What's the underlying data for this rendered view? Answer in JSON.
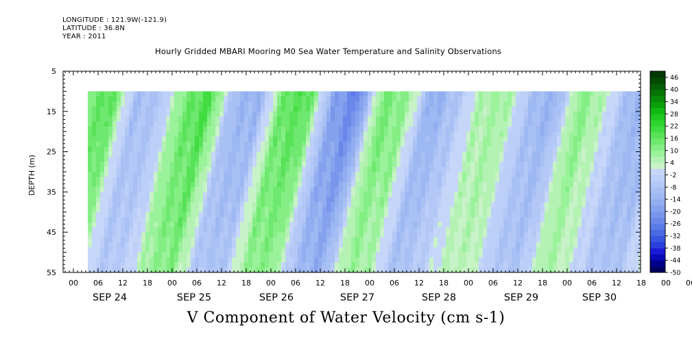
{
  "header": {
    "longitude": "LONGITUDE : 121.9W(-121.9)",
    "latitude": "LATITUDE : 36.8N",
    "year": "YEAR : 2011",
    "title": "Hourly Gridded MBARI Mooring M0 Sea Water Temperature and Salinity Observations"
  },
  "chart_data": {
    "type": "heatmap",
    "title": "V Component of Water Velocity (cm s-1)",
    "ylabel": "DEPTH (m)",
    "xlabel": "",
    "ylim": [
      5,
      55
    ],
    "y_inverted": true,
    "y_ticks": [
      5,
      15,
      25,
      35,
      45,
      55
    ],
    "x_hour_ticks": [
      "00",
      "06",
      "12",
      "18",
      "00",
      "06",
      "12",
      "18",
      "00",
      "06",
      "12",
      "18",
      "00",
      "06",
      "12",
      "18",
      "00",
      "06",
      "12",
      "18",
      "00",
      "06",
      "12",
      "18",
      "00",
      "06",
      "12",
      "18"
    ],
    "x_day_labels": [
      "SEP 24",
      "SEP 25",
      "SEP 26",
      "SEP 27",
      "SEP 28",
      "SEP 29",
      "SEP 30"
    ],
    "data_depth_range": [
      10,
      55
    ],
    "colorbar": {
      "labels": [
        "46",
        "40",
        "34",
        "28",
        "22",
        "16",
        "10",
        "4",
        "-2",
        "-8",
        "-14",
        "-20",
        "-26",
        "-32",
        "-38",
        "-44",
        "-50"
      ],
      "levels": [
        -50,
        -47,
        -44,
        -41,
        -38,
        -35,
        -32,
        -29,
        -26,
        -23,
        -20,
        -17,
        -14,
        -11,
        -8,
        -5,
        -2,
        1,
        4,
        7,
        10,
        13,
        16,
        19,
        22,
        25,
        28,
        31,
        34,
        37,
        40,
        43,
        46,
        49
      ],
      "colors": [
        "#000060",
        "#00008a",
        "#0a0ab8",
        "#1a1ad6",
        "#2a3fdc",
        "#3855e0",
        "#4869e2",
        "#5a7ae6",
        "#6a88ea",
        "#7896ec",
        "#86a2ee",
        "#92aef0",
        "#9db8f2",
        "#a8c0f4",
        "#b3c8f6",
        "#bccff8",
        "#c6d6f9",
        "#c8f2c8",
        "#b3f2b3",
        "#9af29a",
        "#84ee84",
        "#6ee86e",
        "#58e258",
        "#40dc40",
        "#2ed52e",
        "#1ec81e",
        "#12b812",
        "#0aa00a",
        "#078a07",
        "#067406",
        "#055e05",
        "#044a04",
        "#033703"
      ]
    },
    "band_values_by_hour_offset": [
      [
        0,
        12
      ],
      [
        6,
        18
      ],
      [
        12,
        -10
      ],
      [
        18,
        -8
      ],
      [
        24,
        14
      ],
      [
        30,
        20
      ],
      [
        36,
        -12
      ],
      [
        42,
        -14
      ],
      [
        48,
        16
      ],
      [
        54,
        18
      ],
      [
        60,
        -18
      ],
      [
        66,
        -26
      ],
      [
        72,
        14
      ],
      [
        78,
        10
      ],
      [
        84,
        -16
      ],
      [
        90,
        -8
      ],
      [
        96,
        6
      ],
      [
        102,
        8
      ],
      [
        108,
        -10
      ],
      [
        114,
        -14
      ],
      [
        120,
        12
      ],
      [
        126,
        4
      ],
      [
        132,
        -12
      ],
      [
        138,
        -14
      ],
      [
        144,
        6
      ],
      [
        150,
        4
      ],
      [
        156,
        2
      ],
      [
        162,
        10
      ]
    ]
  }
}
